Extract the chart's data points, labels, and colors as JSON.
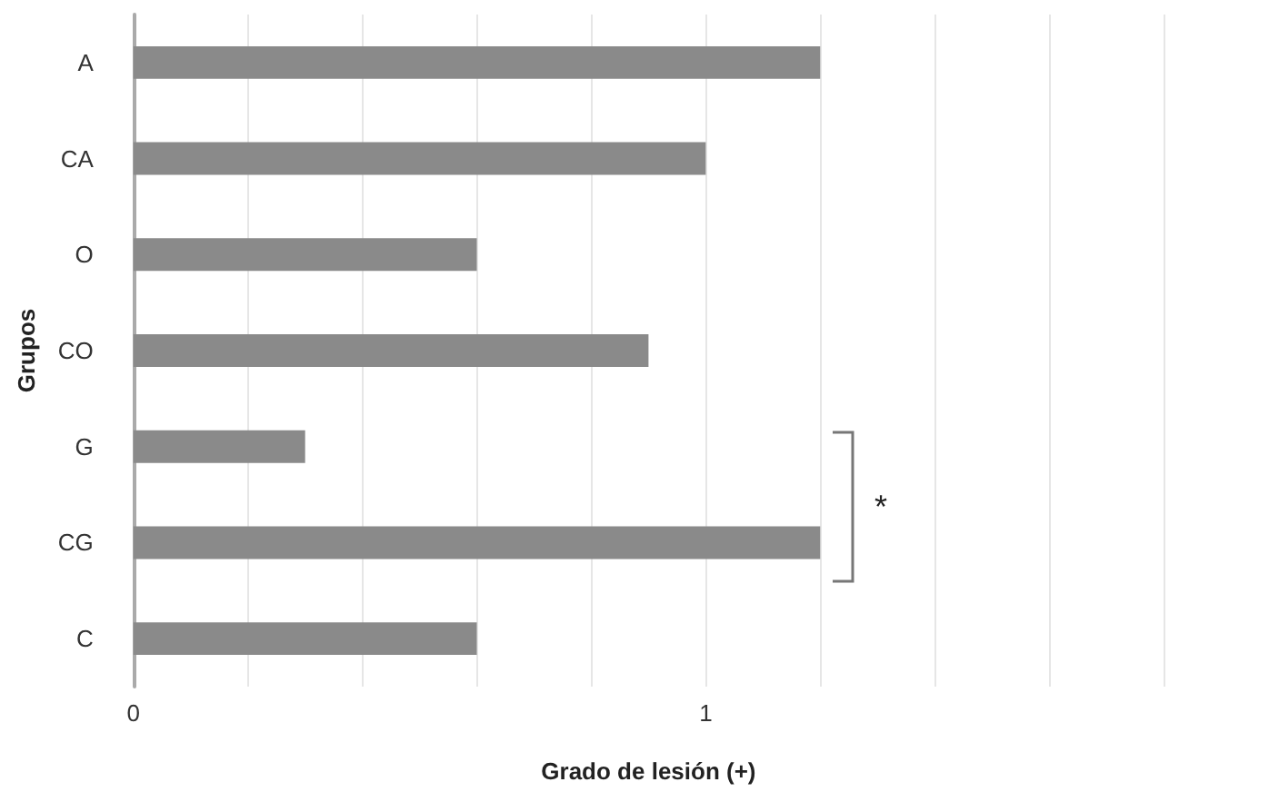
{
  "chart_data": {
    "type": "bar",
    "orientation": "horizontal",
    "xlabel": "Grado de lesión (+)",
    "ylabel": "Grupos",
    "categories": [
      "A",
      "CA",
      "O",
      "CO",
      "G",
      "CG",
      "C"
    ],
    "values": [
      1.2,
      1.0,
      0.6,
      0.9,
      0.3,
      1.2,
      0.6
    ],
    "color": "#8a8a8a",
    "xlim": [
      0,
      1.8
    ],
    "xticks": [
      0,
      {
        "value": 0.2,
        "label": null
      },
      {
        "value": 0.4,
        "label": null
      },
      {
        "value": 0.6,
        "label": null
      },
      {
        "value": 0.8,
        "label": null
      },
      1,
      {
        "value": 1.2,
        "label": null
      },
      {
        "value": 1.4,
        "label": null
      },
      {
        "value": 1.6,
        "label": null
      },
      {
        "value": 1.8,
        "label": null
      }
    ],
    "grid": "x",
    "annotations": [
      "*"
    ]
  }
}
